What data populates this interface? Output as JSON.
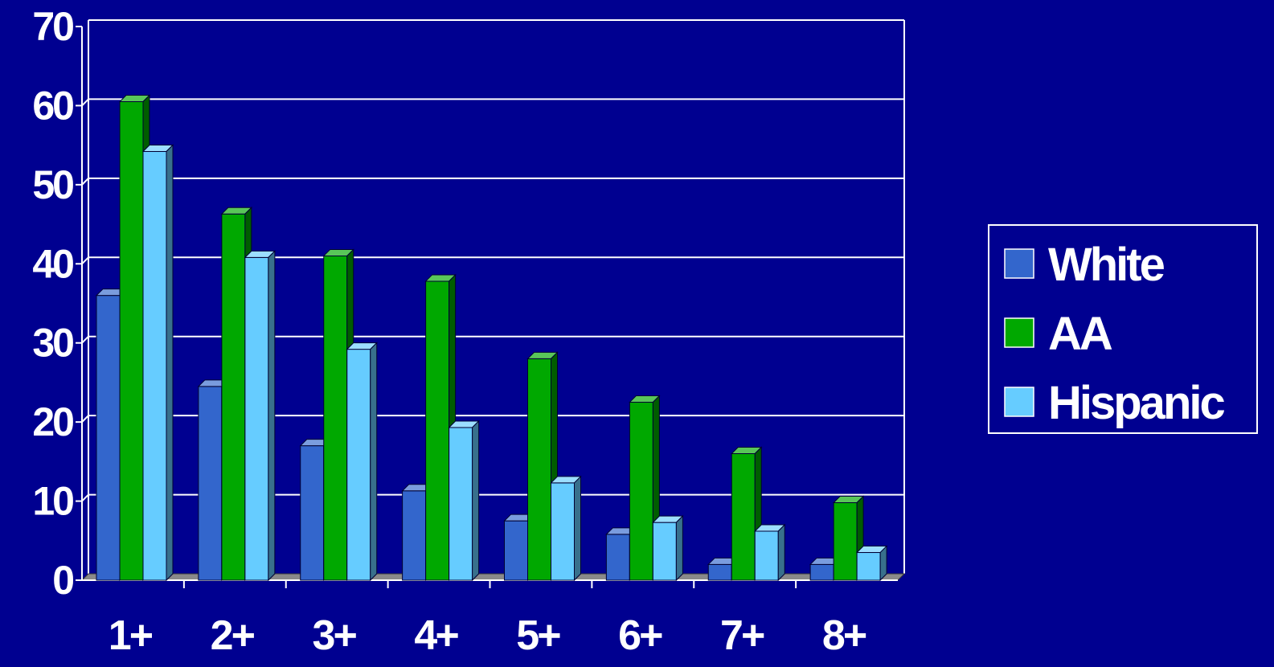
{
  "chart_data": {
    "type": "bar",
    "categories": [
      "1+",
      "2+",
      "3+",
      "4+",
      "5+",
      "6+",
      "7+",
      "8+"
    ],
    "series": [
      {
        "name": "White",
        "color": "#3366cc",
        "values": [
          36,
          24.5,
          17,
          11.3,
          7.5,
          5.8,
          2,
          2
        ]
      },
      {
        "name": "AA",
        "color": "#00a800",
        "values": [
          60.5,
          46.3,
          41,
          37.8,
          28,
          22.5,
          16,
          9.8
        ]
      },
      {
        "name": "Hispanic",
        "color": "#66ccff",
        "values": [
          54.2,
          40.8,
          29.2,
          19.3,
          12.3,
          7.3,
          6.2,
          3.5
        ]
      }
    ],
    "yticks": [
      "0",
      "10",
      "20",
      "30",
      "40",
      "50",
      "60",
      "70"
    ],
    "ylim": [
      0,
      70
    ],
    "grid": true,
    "legend": "right",
    "title": "",
    "xlabel": "",
    "ylabel": ""
  }
}
